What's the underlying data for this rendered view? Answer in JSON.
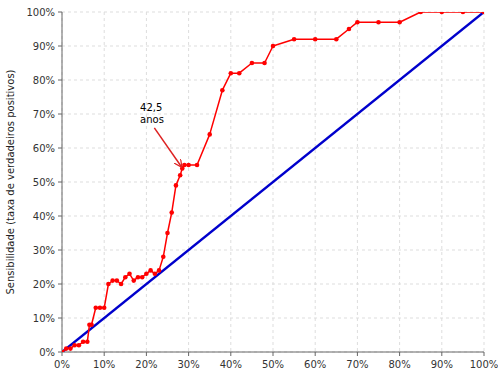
{
  "chart_data": {
    "type": "line",
    "ylabel": "Sensibilidade (taxa de verdadeiros positivos)",
    "xlim": [
      0.0,
      1.0
    ],
    "ylim": [
      0.0,
      1.0
    ],
    "xticks": [
      {
        "value": 0.0,
        "label": "0%"
      },
      {
        "value": 0.1,
        "label": "10%"
      },
      {
        "value": 0.2,
        "label": "20%"
      },
      {
        "value": 0.3,
        "label": "30%"
      },
      {
        "value": 0.4,
        "label": "40%"
      },
      {
        "value": 0.5,
        "label": "50%"
      },
      {
        "value": 0.6,
        "label": "60%"
      },
      {
        "value": 0.7,
        "label": "70%"
      },
      {
        "value": 0.8,
        "label": "80%"
      },
      {
        "value": 0.9,
        "label": "90%"
      },
      {
        "value": 1.0,
        "label": "100%"
      }
    ],
    "yticks": [
      {
        "value": 0.0,
        "label": "0%"
      },
      {
        "value": 0.1,
        "label": "10%"
      },
      {
        "value": 0.2,
        "label": "20%"
      },
      {
        "value": 0.3,
        "label": "30%"
      },
      {
        "value": 0.4,
        "label": "40%"
      },
      {
        "value": 0.5,
        "label": "50%"
      },
      {
        "value": 0.6,
        "label": "60%"
      },
      {
        "value": 0.7,
        "label": "70%"
      },
      {
        "value": 0.8,
        "label": "80%"
      },
      {
        "value": 0.9,
        "label": "90%"
      },
      {
        "value": 1.0,
        "label": "100%"
      }
    ],
    "grid": true,
    "series": [
      {
        "color": "#0000CC",
        "x": [
          0.0,
          1.0
        ],
        "values": [
          0.0,
          1.0
        ]
      },
      {
        "color": "#FF0000",
        "marker": "circle",
        "x": [
          0.0,
          0.01,
          0.02,
          0.03,
          0.04,
          0.05,
          0.06,
          0.065,
          0.07,
          0.08,
          0.09,
          0.1,
          0.11,
          0.12,
          0.13,
          0.14,
          0.15,
          0.16,
          0.17,
          0.18,
          0.19,
          0.2,
          0.21,
          0.22,
          0.23,
          0.24,
          0.25,
          0.26,
          0.27,
          0.28,
          0.285,
          0.29,
          0.3,
          0.32,
          0.35,
          0.38,
          0.4,
          0.42,
          0.45,
          0.48,
          0.5,
          0.55,
          0.6,
          0.65,
          0.68,
          0.7,
          0.75,
          0.8,
          0.85,
          0.9,
          0.95,
          1.0
        ],
        "values": [
          0.0,
          0.01,
          0.01,
          0.02,
          0.02,
          0.03,
          0.03,
          0.08,
          0.08,
          0.13,
          0.13,
          0.13,
          0.2,
          0.21,
          0.21,
          0.2,
          0.22,
          0.23,
          0.21,
          0.22,
          0.22,
          0.23,
          0.24,
          0.23,
          0.24,
          0.28,
          0.35,
          0.41,
          0.49,
          0.52,
          0.54,
          0.55,
          0.55,
          0.55,
          0.64,
          0.77,
          0.82,
          0.82,
          0.85,
          0.85,
          0.9,
          0.92,
          0.92,
          0.92,
          0.95,
          0.97,
          0.97,
          0.97,
          1.0,
          1.0,
          1.0,
          1.0
        ]
      }
    ],
    "annotations": [
      {
        "text": "42,5\nanos",
        "x": 0.185,
        "y": 0.665,
        "arrow_x": 0.283,
        "arrow_y": 0.545
      }
    ]
  }
}
